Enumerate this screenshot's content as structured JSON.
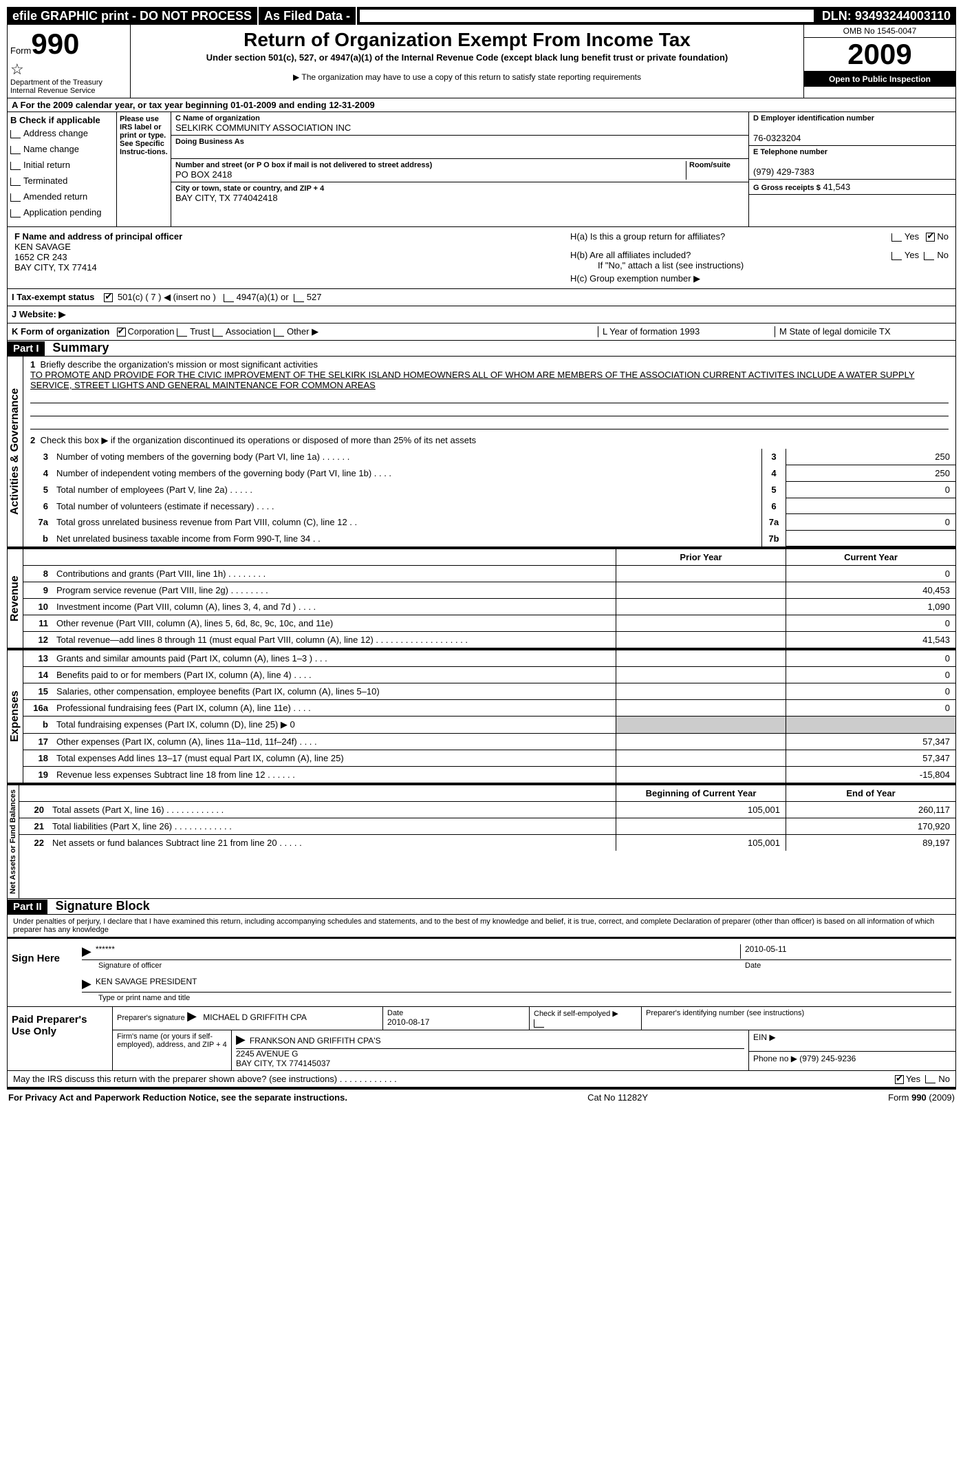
{
  "topbar": {
    "efile": "efile GRAPHIC print - DO NOT PROCESS",
    "asfiled": "As Filed Data -",
    "dln_label": "DLN:",
    "dln": "93493244003110"
  },
  "header": {
    "form_word": "Form",
    "form_num": "990",
    "dept": "Department of the Treasury",
    "irs": "Internal Revenue Service",
    "title": "Return of Organization Exempt From Income Tax",
    "sub": "Under section 501(c), 527, or 4947(a)(1) of the Internal Revenue Code (except black lung benefit trust or private foundation)",
    "note": "▶ The organization may have to use a copy of this return to satisfy state reporting requirements",
    "omb": "OMB No 1545-0047",
    "year": "2009",
    "inspect": "Open to Public Inspection"
  },
  "lineA": "A  For the 2009 calendar year, or tax year beginning 01-01-2009    and ending 12-31-2009",
  "boxB": {
    "title": "B  Check if applicable",
    "items": [
      "Address change",
      "Name change",
      "Initial return",
      "Terminated",
      "Amended return",
      "Application pending"
    ],
    "please": "Please use IRS label or print or type. See Specific Instruc-tions."
  },
  "boxC": {
    "name_lbl": "C Name of organization",
    "name": "SELKIRK COMMUNITY ASSOCIATION INC",
    "dba_lbl": "Doing Business As",
    "street_lbl": "Number and street (or P O  box if mail is not delivered to street address)",
    "room_lbl": "Room/suite",
    "street": "PO BOX 2418",
    "city_lbl": "City or town, state or country, and ZIP + 4",
    "city": "BAY CITY, TX  774042418"
  },
  "boxD": {
    "lbl": "D Employer identification number",
    "val": "76-0323204"
  },
  "boxE": {
    "lbl": "E Telephone number",
    "val": "(979) 429-7383"
  },
  "boxG": {
    "lbl": "G Gross receipts $",
    "val": "41,543"
  },
  "boxF": {
    "lbl": "F    Name and address of principal officer",
    "l1": "KEN SAVAGE",
    "l2": "1652 CR 243",
    "l3": "BAY CITY, TX  77414"
  },
  "boxH": {
    "ha": "H(a)  Is this a group return for affiliates?",
    "hb": "H(b)  Are all affiliates included?",
    "hb_note": "If \"No,\" attach a list  (see instructions)",
    "hc": "H(c)   Group exemption number ▶",
    "yes": "Yes",
    "no": "No"
  },
  "lineI": {
    "lbl": "I   Tax-exempt status",
    "c1": "501(c) ( 7 ) ◀ (insert no )",
    "c2": "4947(a)(1) or",
    "c3": "527"
  },
  "lineJ": "J   Website: ▶",
  "lineK": {
    "lbl": "K Form of organization",
    "opts": [
      "Corporation",
      "Trust",
      "Association",
      "Other ▶"
    ],
    "L": "L Year of formation  1993",
    "M": "M State of legal domicile  TX"
  },
  "part1": {
    "hdr": "Part I",
    "title": "Summary",
    "l1": "Briefly describe the organization's mission or most significant activities",
    "mission": "TO PROMOTE AND PROVIDE FOR THE CIVIC IMPROVEMENT OF THE SELKIRK ISLAND HOMEOWNERS ALL OF WHOM ARE MEMBERS OF THE ASSOCIATION  CURRENT ACTIVITES INCLUDE A WATER SUPPLY SERVICE, STREET LIGHTS AND GENERAL MAINTENANCE FOR COMMON AREAS",
    "l2": "Check this box ▶     if the organization discontinued its operations or disposed of more than 25% of its net assets",
    "rows_gov": [
      {
        "n": "3",
        "t": "Number of voting members of the governing body (Part VI, line 1a)   .    .    .    .    .    .",
        "ln": "3",
        "v": "250"
      },
      {
        "n": "4",
        "t": "Number of independent voting members of the governing body (Part VI, line 1b)    .    .    .    .",
        "ln": "4",
        "v": "250"
      },
      {
        "n": "5",
        "t": "Total number of employees (Part V, line 2a)    .    .    .    .    .",
        "ln": "5",
        "v": "0"
      },
      {
        "n": "6",
        "t": "Total number of volunteers (estimate if necessary)    .    .    .    .",
        "ln": "6",
        "v": ""
      },
      {
        "n": "7a",
        "t": "Total gross unrelated business revenue from Part VIII, column (C), line 12   .    .",
        "ln": "7a",
        "v": "0"
      },
      {
        "n": "b",
        "t": "Net unrelated business taxable income from Form 990-T, line 34   .    .",
        "ln": "7b",
        "v": ""
      }
    ],
    "col_prior": "Prior Year",
    "col_curr": "Current Year",
    "rows_rev": [
      {
        "n": "8",
        "t": "Contributions and grants (Part VIII, line 1h)   .    .    .    .    .    .    .    .",
        "p": "",
        "c": "0"
      },
      {
        "n": "9",
        "t": "Program service revenue (Part VIII, line 2g)   .    .    .    .    .    .    .    .",
        "p": "",
        "c": "40,453"
      },
      {
        "n": "10",
        "t": "Investment income (Part VIII, column (A), lines 3, 4, and 7d )    .    .    .    .",
        "p": "",
        "c": "1,090"
      },
      {
        "n": "11",
        "t": "Other revenue (Part VIII, column (A), lines 5, 6d, 8c, 9c, 10c, and 11e)",
        "p": "",
        "c": "0"
      },
      {
        "n": "12",
        "t": "Total revenue—add lines 8 through 11 (must equal Part VIII, column (A), line 12)   .    .    .    .    .    .    .    .    .    .    .    .    .    .    .    .    .    .    .",
        "p": "",
        "c": "41,543"
      }
    ],
    "rows_exp": [
      {
        "n": "13",
        "t": "Grants and similar amounts paid (Part IX, column (A), lines 1–3 )   .    .    .",
        "p": "",
        "c": "0"
      },
      {
        "n": "14",
        "t": "Benefits paid to or for members (Part IX, column (A), line 4)   .    .    .    .",
        "p": "",
        "c": "0"
      },
      {
        "n": "15",
        "t": "Salaries, other compensation, employee benefits (Part IX, column (A), lines 5–10)",
        "p": "",
        "c": "0"
      },
      {
        "n": "16a",
        "t": "Professional fundraising fees (Part IX, column (A), line 11e)   .    .    .    .",
        "p": "",
        "c": "0"
      },
      {
        "n": "b",
        "t": "Total fundraising expenses (Part IX, column (D), line 25) ▶ 0",
        "p": "—",
        "c": "—"
      },
      {
        "n": "17",
        "t": "Other expenses (Part IX, column (A), lines 11a–11d, 11f–24f)   .    .    .    .",
        "p": "",
        "c": "57,347"
      },
      {
        "n": "18",
        "t": "Total expenses  Add lines 13–17 (must equal Part IX, column (A), line 25)",
        "p": "",
        "c": "57,347"
      },
      {
        "n": "19",
        "t": "Revenue less expenses  Subtract line 18 from line 12   .    .    .    .    .    .",
        "p": "",
        "c": "-15,804"
      }
    ],
    "col_beg": "Beginning of Current Year",
    "col_end": "End of Year",
    "rows_net": [
      {
        "n": "20",
        "t": "Total assets (Part X, line 16)   .    .    .    .    .    .    .    .    .    .    .    .",
        "p": "105,001",
        "c": "260,117"
      },
      {
        "n": "21",
        "t": "Total liabilities (Part X, line 26)   .    .    .    .    .    .    .    .    .    .    .    .",
        "p": "",
        "c": "170,920"
      },
      {
        "n": "22",
        "t": "Net assets or fund balances  Subtract line 21 from line 20   .    .    .    .    .",
        "p": "105,001",
        "c": "89,197"
      }
    ],
    "vlab_gov": "Activities & Governance",
    "vlab_rev": "Revenue",
    "vlab_exp": "Expenses",
    "vlab_net": "Net Assets or Fund Balances"
  },
  "part2": {
    "hdr": "Part II",
    "title": "Signature Block",
    "decl": "Under penalties of perjury, I declare that I have examined this return, including accompanying schedules and statements, and to the best of my knowledge and belief, it is true, correct, and complete  Declaration of preparer (other than officer) is based on all information of which preparer has any knowledge",
    "sign_here": "Sign Here",
    "stars": "******",
    "sig_of": "Signature of officer",
    "date": "2010-05-11",
    "date_lbl": "Date",
    "name": "KEN SAVAGE PRESIDENT",
    "name_lbl": "Type or print name and title"
  },
  "prep": {
    "lbl": "Paid Preparer's Use Only",
    "sig_lbl": "Preparer's signature",
    "sig": "MICHAEL D GRIFFITH CPA",
    "date_lbl": "Date",
    "date": "2010-08-17",
    "chk_lbl": "Check if self-empolyed ▶",
    "pin_lbl": "Preparer's identifying number (see instructions)",
    "firm_lbl": "Firm's name (or yours if self-employed), address, and ZIP + 4",
    "firm": "FRANKSON AND GRIFFITH CPA'S",
    "addr1": "2245 AVENUE G",
    "addr2": "BAY CITY, TX  774145037",
    "ein_lbl": "EIN ▶",
    "phone_lbl": "Phone no  ▶",
    "phone": "(979) 245-9236"
  },
  "discuss": "May the IRS discuss this return with the preparer shown above? (see instructions)    .    .    .    .    .    .    .    .    .    .    .    .",
  "footer": {
    "left": "For Privacy Act and Paperwork Reduction Notice, see the separate instructions.",
    "mid": "Cat No 11282Y",
    "right": "Form 990 (2009)"
  }
}
